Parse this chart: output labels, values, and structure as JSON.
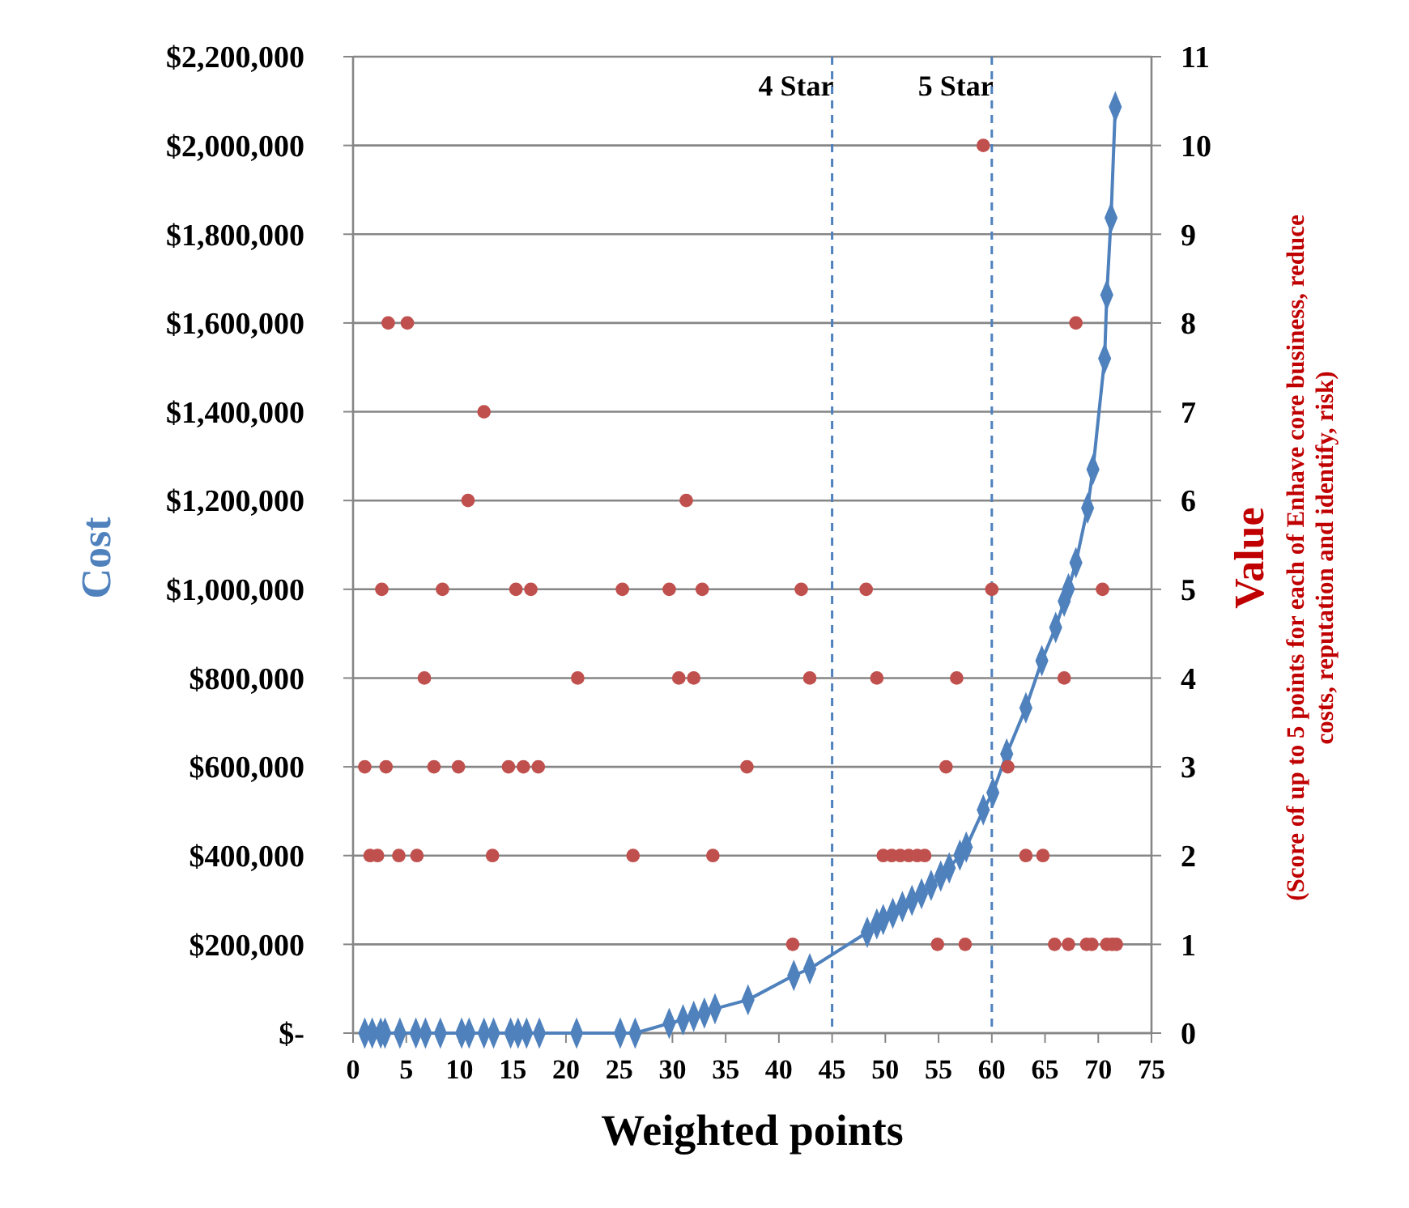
{
  "chart_data": {
    "type": "line",
    "xlabel": "Weighted points",
    "ylabel": "Cost",
    "y2label": "Value",
    "annotations": [
      "(Score of up to 5 points for each of Enhave core business, reduce costs, reputation and identify, risk)"
    ],
    "xlim": [
      0,
      75
    ],
    "xticks": [
      0,
      5,
      10,
      15,
      20,
      25,
      30,
      35,
      40,
      45,
      50,
      55,
      60,
      65,
      70,
      75
    ],
    "ylim": [
      0,
      2200000
    ],
    "yticks": [
      {
        "value": 0,
        "label": "$-"
      },
      {
        "value": 200000,
        "label": "$200,000"
      },
      {
        "value": 400000,
        "label": "$400,000"
      },
      {
        "value": 600000,
        "label": "$600,000"
      },
      {
        "value": 800000,
        "label": "$800,000"
      },
      {
        "value": 1000000,
        "label": "$1,000,000"
      },
      {
        "value": 1200000,
        "label": "$1,200,000"
      },
      {
        "value": 1400000,
        "label": "$1,400,000"
      },
      {
        "value": 1600000,
        "label": "$1,600,000"
      },
      {
        "value": 1800000,
        "label": "$1,800,000"
      },
      {
        "value": 2000000,
        "label": "$2,000,000"
      },
      {
        "value": 2200000,
        "label": "$2,200,000"
      }
    ],
    "y2lim": [
      0,
      11
    ],
    "y2ticks": [
      0,
      1,
      2,
      3,
      4,
      5,
      6,
      7,
      8,
      9,
      10,
      11
    ],
    "grid": "y",
    "ref_lines": [
      {
        "axis": "x",
        "value": 45,
        "label": "4 Star",
        "color": "#4f81bd",
        "line_style": "dashed"
      },
      {
        "axis": "x",
        "value": 60,
        "label": "5 Star",
        "color": "#4f81bd",
        "line_style": "dashed"
      }
    ],
    "series": [
      {
        "color": "#4f81bd",
        "marker": "diamond",
        "line_style": "solid",
        "x": [
          1.1,
          1.8,
          2.6,
          3.0,
          4.4,
          5.9,
          6.8,
          8.2,
          10.2,
          10.9,
          12.3,
          13.2,
          14.8,
          15.5,
          16.3,
          17.5,
          21.0,
          25.1,
          26.5,
          29.7,
          31,
          32,
          33,
          34,
          37.1,
          41.4,
          42.9,
          48.3,
          49.2,
          49.8,
          50.7,
          51.6,
          52.5,
          53.4,
          54.3,
          55.2,
          56.0,
          57.0,
          57.6,
          59.2,
          60.1,
          61.4,
          63.2,
          64.7,
          66.0,
          66.8,
          67.2,
          67.9,
          69.0,
          69.5,
          70.6,
          70.8,
          71.2,
          71.6
        ],
        "values": [
          0,
          0,
          0,
          0,
          0,
          0,
          0,
          0,
          0,
          0,
          0,
          0,
          0,
          0,
          0,
          0,
          0,
          0,
          0,
          22000,
          30000,
          38000,
          45000,
          55000,
          75000,
          130000,
          145000,
          227000,
          246000,
          256000,
          270000,
          285000,
          299000,
          314000,
          333000,
          354000,
          372000,
          401000,
          419000,
          503000,
          542000,
          629000,
          733000,
          839000,
          914000,
          973000,
          1001000,
          1060000,
          1183000,
          1270000,
          1520000,
          1663000,
          1837000,
          2087000
        ]
      },
      {
        "type": "scatter",
        "axis": "y2",
        "color": "#c0504d",
        "marker": "circle",
        "x": [
          3.3,
          5.1,
          12.3,
          10.8,
          31.3,
          2.7,
          8.4,
          15.3,
          16.7,
          25.3,
          29.7,
          32.8,
          42.1,
          48.2,
          60.0,
          70.4,
          6.7,
          21.1,
          30.6,
          32.0,
          42.9,
          49.2,
          56.7,
          66.8,
          1.1,
          3.1,
          7.6,
          9.9,
          14.6,
          16.0,
          17.4,
          37.0,
          55.7,
          61.5,
          1.6,
          2.3,
          4.3,
          6.0,
          13.1,
          26.3,
          33.8,
          49.8,
          50.6,
          51.4,
          52.2,
          53.0,
          53.7,
          63.2,
          64.8,
          41.3,
          54.9,
          57.5,
          65.9,
          67.2,
          68.9,
          69.4,
          70.8,
          71.3,
          71.7,
          59.2,
          67.9
        ],
        "values": [
          8,
          8,
          7,
          6,
          6,
          5,
          5,
          5,
          5,
          5,
          5,
          5,
          5,
          5,
          5,
          5,
          4,
          4,
          4,
          4,
          4,
          4,
          4,
          4,
          3,
          3,
          3,
          3,
          3,
          3,
          3,
          3,
          3,
          3,
          2,
          2,
          2,
          2,
          2,
          2,
          2,
          2,
          2,
          2,
          2,
          2,
          2,
          2,
          2,
          1,
          1,
          1,
          1,
          1,
          1,
          1,
          1,
          1,
          1,
          10,
          8
        ]
      }
    ]
  }
}
